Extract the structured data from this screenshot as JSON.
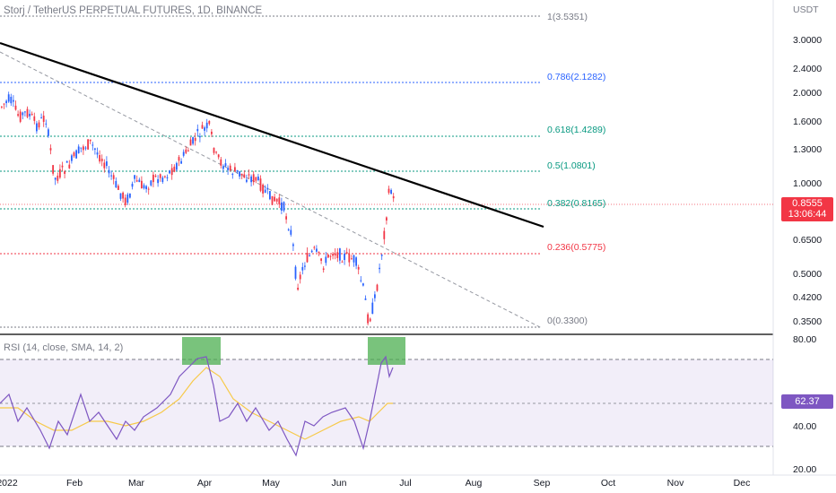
{
  "header": {
    "symbol_title": "Storj / TetherUS PERPETUAL FUTURES, 1D, BINANCE"
  },
  "price_scale": {
    "currency": "USDT",
    "ticks": [
      "3.0000",
      "2.4000",
      "2.0000",
      "1.6000",
      "1.3000",
      "1.0000",
      "0.6500",
      "0.5000",
      "0.4200",
      "0.3500"
    ]
  },
  "last_price": {
    "value": "0.8555",
    "countdown": "13:06:44",
    "color": "#f23645"
  },
  "fib_levels": [
    {
      "label": "1(3.5351)",
      "color": "#787b86"
    },
    {
      "label": "0.786(2.1282)",
      "color": "#2962ff"
    },
    {
      "label": "0.618(1.4289)",
      "color": "#089981"
    },
    {
      "label": "0.5(1.0801)",
      "color": "#089981"
    },
    {
      "label": "0.382(0.8165)",
      "color": "#089981"
    },
    {
      "label": "0.236(0.5775)",
      "color": "#f23645"
    },
    {
      "label": "0(0.3300)",
      "color": "#787b86"
    }
  ],
  "rsi": {
    "title": "RSI (14, close, SMA, 14, 2)",
    "value": "62.37",
    "ma_value": "50.86",
    "ticks": [
      "80.00",
      "40.00",
      "20.00"
    ],
    "line_color": "#7e57c2",
    "ma_color": "#f7c948"
  },
  "time_axis": {
    "labels": [
      "2022",
      "Feb",
      "Mar",
      "Apr",
      "May",
      "Jun",
      "Jul",
      "Aug",
      "Sep",
      "Oct",
      "Nov",
      "Dec"
    ]
  },
  "colors": {
    "up": "#2962ff",
    "down": "#f23645",
    "trendline": "#000000"
  }
}
